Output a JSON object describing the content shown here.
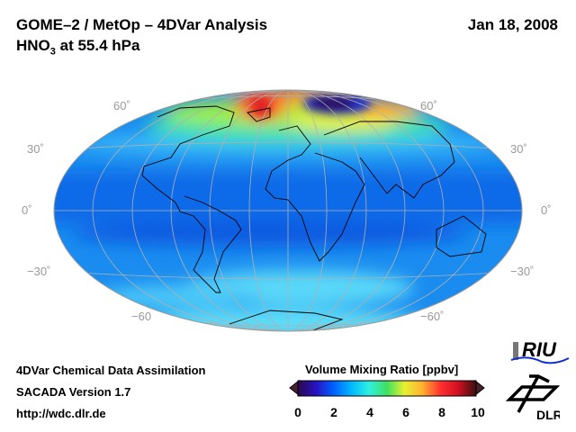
{
  "header": {
    "title_line1": "GOME–2 / MetOp – 4DVar Analysis",
    "title_species": "HNO",
    "title_sub": "3",
    "title_rest": " at 55.4 hPa",
    "date": "Jan 18, 2008"
  },
  "map": {
    "projection": "Hammer",
    "lat_labels_left": [
      "60˚",
      "30˚",
      "0˚",
      "−30˚",
      "−60"
    ],
    "lat_labels_right": [
      "60˚",
      "30˚",
      "0˚",
      "−30˚",
      "−60˚"
    ]
  },
  "footer": {
    "line1": "4DVar Chemical Data Assimilation",
    "line2": "SACADA Version 1.7",
    "line3": "http://wdc.dlr.de"
  },
  "colorbar": {
    "title": "Volume Mixing Ratio [ppbv]",
    "min": 0,
    "max": 10,
    "ticks": [
      "0",
      "2",
      "4",
      "6",
      "8",
      "10"
    ],
    "colors": [
      "#2a0a4a",
      "#2a10c0",
      "#0060ff",
      "#00b8ff",
      "#30f0e0",
      "#40e060",
      "#c0f020",
      "#ffe030",
      "#ff8030",
      "#ff1020",
      "#801010",
      "#3a1010"
    ]
  },
  "logos": {
    "riu": "RIU",
    "dlr": "DLR"
  }
}
